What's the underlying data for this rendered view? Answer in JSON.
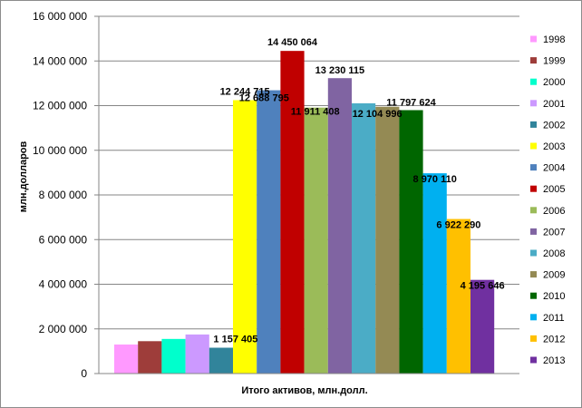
{
  "chart_data": {
    "type": "bar",
    "categories": [
      "Итого активов, млн.долл."
    ],
    "xlabel": "Итого активов, млн.долл.",
    "ylabel": "млн.долларов",
    "ylim": [
      0,
      16000000
    ],
    "y_ticks": [
      0,
      2000000,
      4000000,
      6000000,
      8000000,
      10000000,
      12000000,
      14000000,
      16000000
    ],
    "y_tick_labels": [
      "0",
      "2 000 000",
      "4 000 000",
      "6 000 000",
      "8 000 000",
      "10 000 000",
      "12 000 000",
      "14 000 000",
      "16 000 000"
    ],
    "grid": true,
    "legend_position": "right",
    "series": [
      {
        "name": "1998",
        "values": [
          1300000
        ],
        "color": "#ff99ff",
        "label": ""
      },
      {
        "name": "1999",
        "values": [
          1450000
        ],
        "color": "#9e3d3a",
        "label": ""
      },
      {
        "name": "2000",
        "values": [
          1550000
        ],
        "color": "#00ffcc",
        "label": ""
      },
      {
        "name": "2001",
        "values": [
          1750000
        ],
        "color": "#cc99ff",
        "label": ""
      },
      {
        "name": "2002",
        "values": [
          1157405
        ],
        "color": "#31849b",
        "label": "1 157 405"
      },
      {
        "name": "2003",
        "values": [
          12244715
        ],
        "color": "#ffff00",
        "label": "12 244 715"
      },
      {
        "name": "2004",
        "values": [
          12688795
        ],
        "color": "#4f81bd",
        "label": "12 688 795"
      },
      {
        "name": "2005",
        "values": [
          14450064
        ],
        "color": "#c00000",
        "label": "14 450 064"
      },
      {
        "name": "2006",
        "values": [
          11911408
        ],
        "color": "#9bbb59",
        "label": "11 911 408"
      },
      {
        "name": "2007",
        "values": [
          13230115
        ],
        "color": "#8064a2",
        "label": "13 230 115"
      },
      {
        "name": "2008",
        "values": [
          12104996
        ],
        "color": "#4bacc6",
        "label": "12 104 996"
      },
      {
        "name": "2009",
        "values": [
          11950000
        ],
        "color": "#948a54",
        "label": ""
      },
      {
        "name": "2010",
        "values": [
          11797624
        ],
        "color": "#006600",
        "label": "11 797 624"
      },
      {
        "name": "2011",
        "values": [
          8970110
        ],
        "color": "#00b0f0",
        "label": "8 970 110"
      },
      {
        "name": "2012",
        "values": [
          6922290
        ],
        "color": "#ffc000",
        "label": "6 922 290"
      },
      {
        "name": "2013",
        "values": [
          4195646
        ],
        "color": "#7030a0",
        "label": "4 195 646"
      }
    ]
  }
}
